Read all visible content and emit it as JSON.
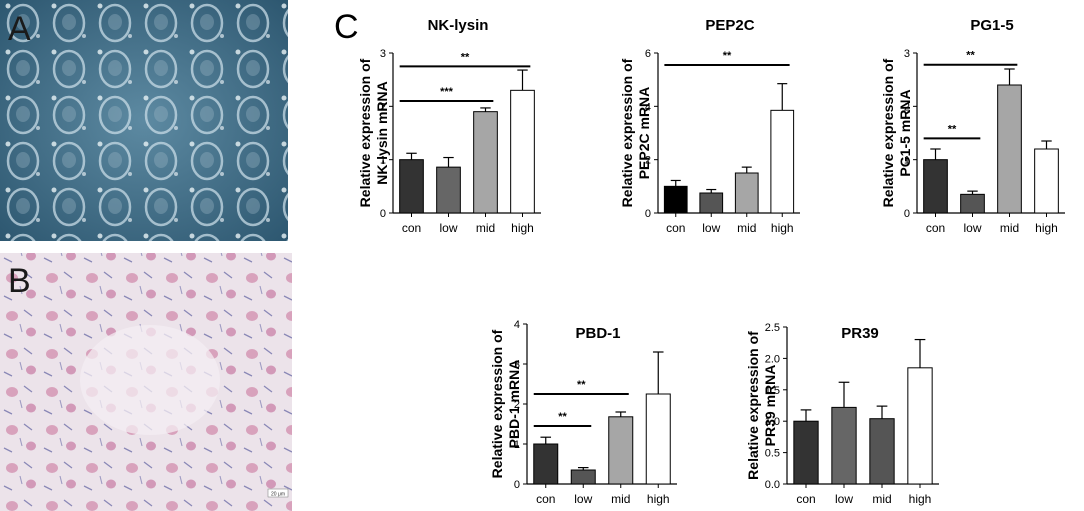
{
  "panels": {
    "a_label": "A",
    "b_label": "B",
    "c_label": "C",
    "scale_bar_label": "20 μm"
  },
  "chart_data": [
    {
      "type": "bar",
      "title": "NK-lysin",
      "ylabel": "Relative expression of\nNK-lysin mRNA",
      "categories": [
        "con",
        "low",
        "mid",
        "high"
      ],
      "values": [
        1.0,
        0.86,
        1.9,
        2.3
      ],
      "errors": [
        0.12,
        0.18,
        0.07,
        0.38
      ],
      "ylim": [
        0,
        3
      ],
      "yticks": [
        "0",
        "1",
        "2",
        "3"
      ],
      "bar_colors": [
        "#333333",
        "#666666",
        "#a6a6a6",
        "#ffffff"
      ],
      "significance": [
        {
          "from": "con",
          "to": "mid",
          "label": "***",
          "y": 2.1
        },
        {
          "from": "con",
          "to": "high",
          "label": "**",
          "y": 2.75
        }
      ]
    },
    {
      "type": "bar",
      "title": "PEP2C",
      "ylabel": "Relative expression of\nPEP2C mRNA",
      "categories": [
        "con",
        "low",
        "mid",
        "high"
      ],
      "values": [
        1.0,
        0.75,
        1.5,
        3.85
      ],
      "errors": [
        0.22,
        0.13,
        0.22,
        1.0
      ],
      "ylim": [
        0,
        6
      ],
      "yticks": [
        "0",
        "2",
        "4",
        "6"
      ],
      "bar_colors": [
        "#000000",
        "#555555",
        "#a6a6a6",
        "#ffffff"
      ],
      "significance": [
        {
          "from": "con",
          "to": "high",
          "label": "**",
          "y": 5.55
        }
      ]
    },
    {
      "type": "bar",
      "title": "PG1-5",
      "ylabel": "Relative expression of\nPG1-5 mRNA",
      "categories": [
        "con",
        "low",
        "mid",
        "high"
      ],
      "values": [
        1.0,
        0.35,
        2.4,
        1.2
      ],
      "errors": [
        0.2,
        0.06,
        0.3,
        0.15
      ],
      "ylim": [
        0,
        3
      ],
      "yticks": [
        "0",
        "1",
        "2",
        "3"
      ],
      "bar_colors": [
        "#333333",
        "#555555",
        "#a6a6a6",
        "#ffffff"
      ],
      "significance": [
        {
          "from": "con",
          "to": "low",
          "label": "**",
          "y": 1.4
        },
        {
          "from": "con",
          "to": "mid",
          "label": "**",
          "y": 2.78
        }
      ]
    },
    {
      "type": "bar",
      "title": "PBD-1",
      "ylabel": "Relative expression of\nPBD-1 mRNA",
      "categories": [
        "con",
        "low",
        "mid",
        "high"
      ],
      "values": [
        1.0,
        0.35,
        1.68,
        2.25
      ],
      "errors": [
        0.17,
        0.06,
        0.12,
        1.05
      ],
      "ylim": [
        0,
        4
      ],
      "yticks": [
        "0",
        "1",
        "2",
        "3",
        "4"
      ],
      "bar_colors": [
        "#333333",
        "#555555",
        "#a6a6a6",
        "#ffffff"
      ],
      "significance": [
        {
          "from": "con",
          "to": "low",
          "label": "**",
          "y": 1.45
        },
        {
          "from": "con",
          "to": "mid",
          "label": "**",
          "y": 2.25
        }
      ]
    },
    {
      "type": "bar",
      "title": "PR39",
      "ylabel": "Relative expression of\nPR39 mRNA",
      "categories": [
        "con",
        "low",
        "mid",
        "high"
      ],
      "values": [
        1.0,
        1.22,
        1.04,
        1.85
      ],
      "errors": [
        0.18,
        0.4,
        0.2,
        0.45
      ],
      "ylim": [
        0,
        2.5
      ],
      "yticks": [
        "0.0",
        "0.5",
        "1.0",
        "1.5",
        "2.0",
        "2.5"
      ],
      "bar_colors": [
        "#333333",
        "#666666",
        "#555555",
        "#ffffff"
      ],
      "significance": []
    }
  ]
}
